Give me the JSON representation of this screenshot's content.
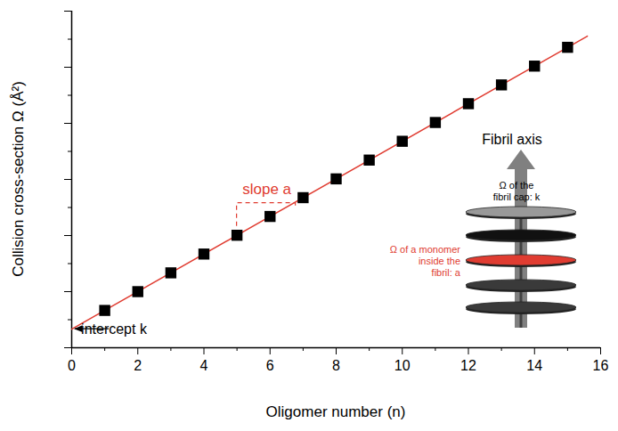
{
  "chart_data": {
    "type": "scatter",
    "x_label": "Oligomer number (n)",
    "y_label": "Collision cross-section Ω (Å²)",
    "x": [
      1,
      2,
      3,
      4,
      5,
      6,
      7,
      8,
      9,
      10,
      11,
      12,
      13,
      14,
      15
    ],
    "values": [
      1.33,
      2.0,
      2.67,
      3.34,
      4.01,
      4.68,
      5.35,
      6.02,
      6.69,
      7.36,
      8.03,
      8.7,
      9.37,
      10.04,
      10.71
    ],
    "color": "#000000",
    "marker": "square",
    "fit_line": {
      "type": "line",
      "x": [
        0,
        15.6
      ],
      "values": [
        0.66,
        11.11
      ],
      "color": "#e03c31",
      "line_style": "solid"
    },
    "xlim": [
      0,
      16
    ],
    "xticks": [
      0,
      2,
      4,
      6,
      8,
      10,
      12,
      14,
      16
    ],
    "ylim": [
      0,
      12
    ],
    "yticks": [
      0,
      2,
      4,
      6,
      8,
      10,
      12
    ],
    "tick_labels": "x",
    "grid": false,
    "annotations": [
      {
        "text": "intercept k",
        "color": "#000000"
      },
      {
        "text": "slope a",
        "color": "#e03c31"
      },
      {
        "text": "Fibril axis",
        "color": "#000000"
      },
      {
        "text": "Ω of the fibril cap: k",
        "color": "#000000"
      },
      {
        "text": "Ω of a monomer inside the fibril: a",
        "color": "#e03c31"
      }
    ]
  }
}
